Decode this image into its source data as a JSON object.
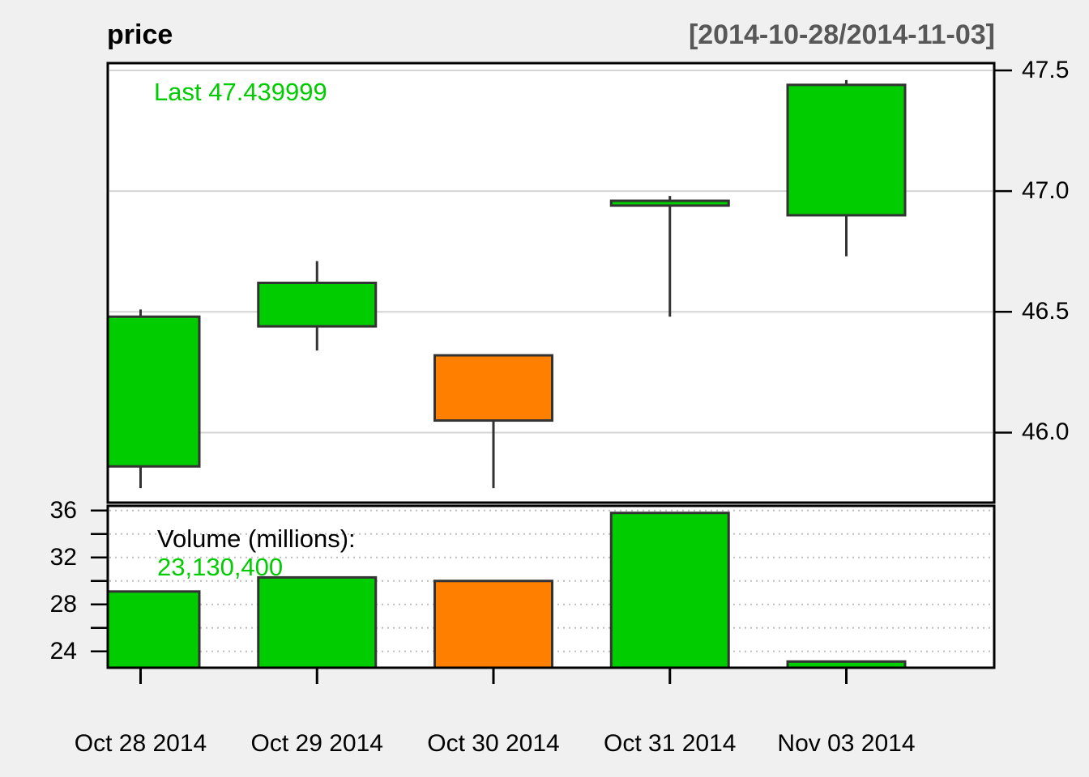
{
  "header": {
    "title": "price",
    "date_range": "[2014-10-28/2014-11-03]"
  },
  "annotations": {
    "last_price_label": "Last 47.439999",
    "volume_title": "Volume (millions):",
    "volume_value": "23,130,400"
  },
  "colors": {
    "up": "#00CC00",
    "down": "#FF7F00",
    "candle_border": "#333333",
    "panel_border": "#000000",
    "panel_bg": "#FFFFFF",
    "background": "#F0F0F0",
    "grid_solid": "#D4D4D4",
    "grid_dotted": "#BFBFBF",
    "tick": "#000000",
    "axis_text": "#000000",
    "header_range_text": "#585858",
    "green_text": "#00CC00"
  },
  "chart_data": {
    "type": "candlestick",
    "title": "price",
    "period": "[2014-10-28/2014-11-03]",
    "x": [
      "Oct 28 2014",
      "Oct 29 2014",
      "Oct 30 2014",
      "Oct 31 2014",
      "Nov 03 2014"
    ],
    "series": [
      {
        "date": "Oct 28 2014",
        "open": 45.86,
        "high": 46.51,
        "low": 45.77,
        "close": 46.48,
        "volume_millions": 29.1,
        "direction": "up"
      },
      {
        "date": "Oct 29 2014",
        "open": 46.44,
        "high": 46.71,
        "low": 46.34,
        "close": 46.62,
        "volume_millions": 30.3,
        "direction": "up"
      },
      {
        "date": "Oct 30 2014",
        "open": 46.32,
        "high": 46.32,
        "low": 45.77,
        "close": 46.05,
        "volume_millions": 30.0,
        "direction": "down"
      },
      {
        "date": "Oct 31 2014",
        "open": 46.94,
        "high": 46.98,
        "low": 46.48,
        "close": 46.96,
        "volume_millions": 35.8,
        "direction": "up"
      },
      {
        "date": "Nov 03 2014",
        "open": 46.9,
        "high": 47.46,
        "low": 46.73,
        "close": 47.44,
        "volume_millions": 23.13,
        "direction": "up"
      }
    ],
    "last_price": 47.439999,
    "last_volume": 23130400,
    "price_axis": {
      "side": "right",
      "ylim": [
        45.71,
        47.53
      ],
      "ticks": [
        47.5,
        47.0,
        46.5,
        46.0
      ],
      "tick_labels": [
        "47.5",
        "47.0",
        "46.5",
        "46.0"
      ],
      "grid": "solid"
    },
    "volume_axis": {
      "side": "left",
      "ylim": [
        22.6,
        36.4
      ],
      "ticks": [
        36,
        34,
        32,
        30,
        28,
        26,
        24
      ],
      "labeled_ticks": [
        36,
        32,
        28,
        24
      ],
      "tick_labels": [
        "36",
        "32",
        "28",
        "24"
      ],
      "grid": "dotted"
    }
  }
}
